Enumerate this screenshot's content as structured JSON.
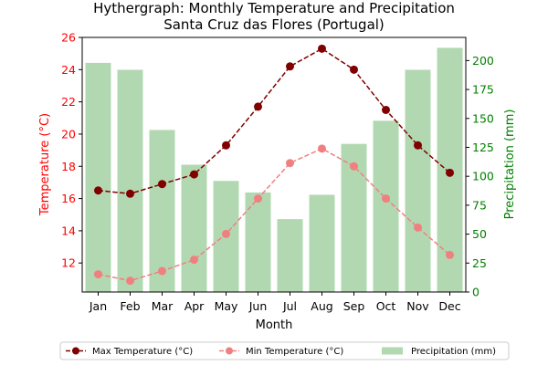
{
  "chart_data": {
    "type": "bar+line",
    "title_line1": "Hythergraph: Monthly Temperature and Precipitation",
    "title_line2": "Santa Cruz das Flores (Portugal)",
    "xlabel": "Month",
    "ylabel_left": "Temperature (°C)",
    "ylabel_right": "Precipitation (mm)",
    "categories": [
      "Jan",
      "Feb",
      "Mar",
      "Apr",
      "May",
      "Jun",
      "Jul",
      "Aug",
      "Sep",
      "Oct",
      "Nov",
      "Dec"
    ],
    "ylim_left": [
      10.2,
      26
    ],
    "yticks_left": [
      12,
      14,
      16,
      18,
      20,
      22,
      24,
      26
    ],
    "ylim_right": [
      0,
      220
    ],
    "yticks_right": [
      0,
      25,
      50,
      75,
      100,
      125,
      150,
      175,
      200
    ],
    "series": [
      {
        "name": "Max Temperature (°C)",
        "kind": "line",
        "axis": "left",
        "color": "#800000",
        "style": "dashed",
        "values": [
          16.5,
          16.3,
          16.9,
          17.5,
          19.3,
          21.7,
          24.2,
          25.3,
          24.0,
          21.5,
          19.3,
          17.6
        ]
      },
      {
        "name": "Min Temperature (°C)",
        "kind": "line",
        "axis": "left",
        "color": "#f08080",
        "style": "dashed",
        "values": [
          11.3,
          10.9,
          11.5,
          12.2,
          13.8,
          16.0,
          18.2,
          19.1,
          18.0,
          16.0,
          14.2,
          12.5
        ]
      },
      {
        "name": "Precipitation (mm)",
        "kind": "bar",
        "axis": "right",
        "color": "#b2d8b2",
        "values": [
          198,
          192,
          140,
          110,
          96,
          86,
          63,
          84,
          128,
          148,
          192,
          211
        ]
      }
    ],
    "left_axis_color": "#ff0000",
    "right_axis_color": "#008000",
    "legend_position": "bottom"
  }
}
